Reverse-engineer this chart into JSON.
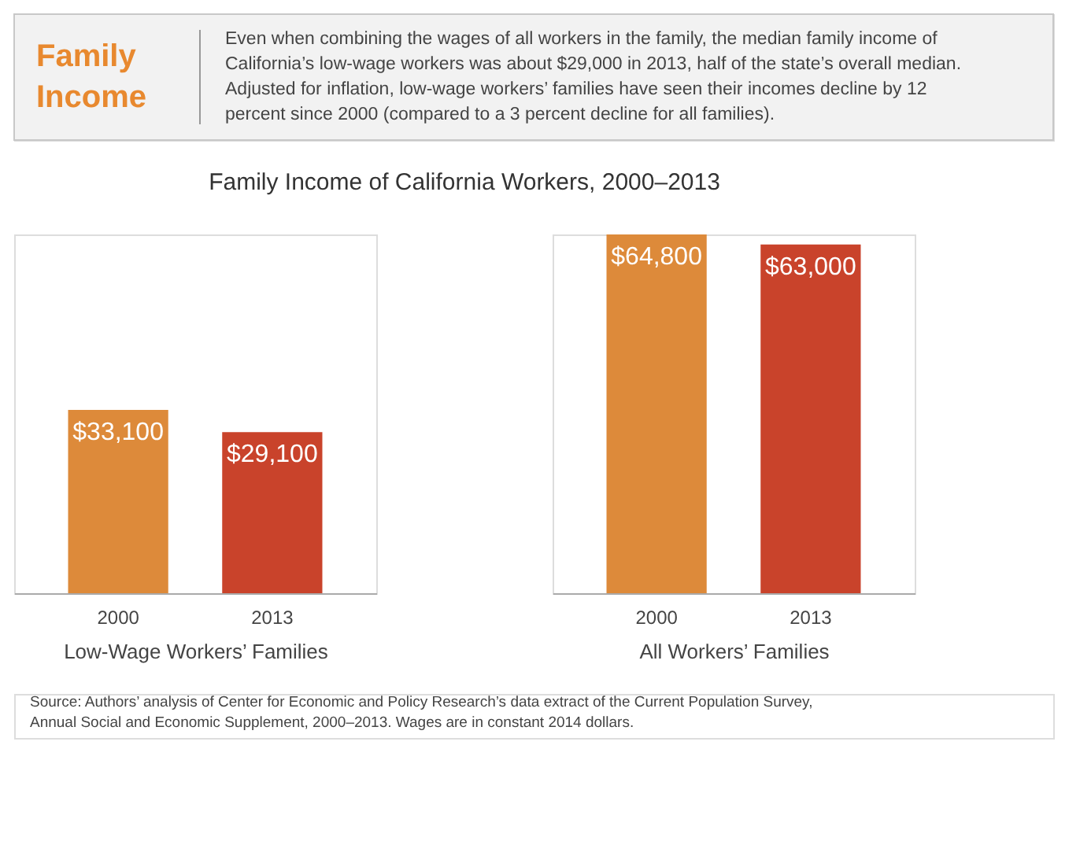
{
  "chart_data": [
    {
      "type": "other",
      "title": "Family Income",
      "annotations": [
        "Even when combining the wages of all workers in the family, the median family income of California’s low-wage workers was about $29,000 in 2013, half of the state’s overall median. Adjusted for inflation, low-wage workers’ families have seen their incomes decline by 12 percent since 2000 (compared to a 3 percent decline for all families)."
      ]
    },
    {
      "type": "bar",
      "title": "Family Income of California Workers, 2000–2013",
      "xlabel": "Low-Wage Workers’ Families",
      "categories": [
        "2000",
        "2013"
      ],
      "values": [
        33100,
        29100
      ],
      "value_labels": [
        "$33,100",
        "$29,100"
      ],
      "colors": [
        "#dd8a3a",
        "#c9432b"
      ],
      "annotations": [
        "Source: Authors’ analysis of Center for Economic and Policy Research’s data extract of the Current Population Survey, Annual Social and Economic Supplement, 2000–2013. Wages are in constant 2014 dollars."
      ]
    },
    {
      "type": "bar",
      "xlabel": "All Workers’ Families",
      "categories": [
        "2000",
        "2013"
      ],
      "values": [
        64800,
        63000
      ],
      "value_labels": [
        "$64,800",
        "$63,000"
      ],
      "colors": [
        "#dd8a3a",
        "#c9432b"
      ]
    }
  ]
}
